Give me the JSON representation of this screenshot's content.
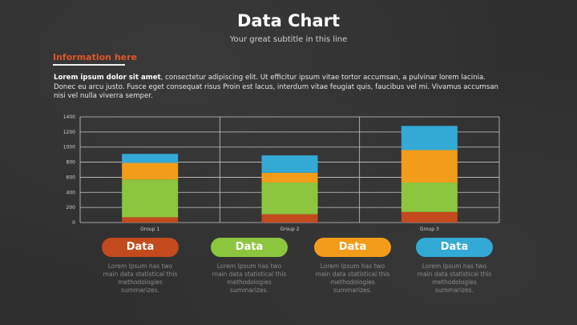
{
  "header": {
    "title": "Data Chart",
    "subtitle": "Your great subtitle in this line"
  },
  "info": {
    "label": "Information here",
    "text_bold": "Lorem ipsum dolor sit amet",
    "text_rest": ", consectetur adipiscing elit. Ut efficitur ipsum vitae tortor accumsan, a pulvinar lorem lacinia. Donec eu arcu justo. Fusce eget consequat risus Proin est lacus, interdum vitae feugiat quis, faucibus vel mi.  Vivamus accumsan nisi vel nulla viverra semper."
  },
  "chart_data": {
    "type": "bar",
    "stacked": true,
    "categories": [
      "Group 1",
      "Group 2",
      "Group 3"
    ],
    "series": [
      {
        "color": "#c24a1c",
        "values": [
          70,
          110,
          140
        ]
      },
      {
        "color": "#8cc63f",
        "values": [
          500,
          420,
          390
        ]
      },
      {
        "color": "#f39c1a",
        "values": [
          220,
          130,
          430
        ]
      },
      {
        "color": "#33a9d6",
        "values": [
          120,
          230,
          320
        ]
      }
    ],
    "ylim": [
      0,
      1400
    ],
    "yticks": [
      0,
      200,
      400,
      600,
      800,
      1000,
      1200,
      1400
    ],
    "grid": true
  },
  "legend": [
    {
      "label": "Data",
      "color": "#c24a1c",
      "desc": "Lorem Ipsum has two main data statistical this methodologies summarizes."
    },
    {
      "label": "Data",
      "color": "#8cc63f",
      "desc": "Lorem Ipsum has two main data statistical this methodologies summarizes."
    },
    {
      "label": "Data",
      "color": "#f39c1a",
      "desc": "Lorem Ipsum has two main data statistical this methodologies summarizes."
    },
    {
      "label": "Data",
      "color": "#33a9d6",
      "desc": "Lorem Ipsum has two main data statistical this methodologies summarizes."
    }
  ]
}
